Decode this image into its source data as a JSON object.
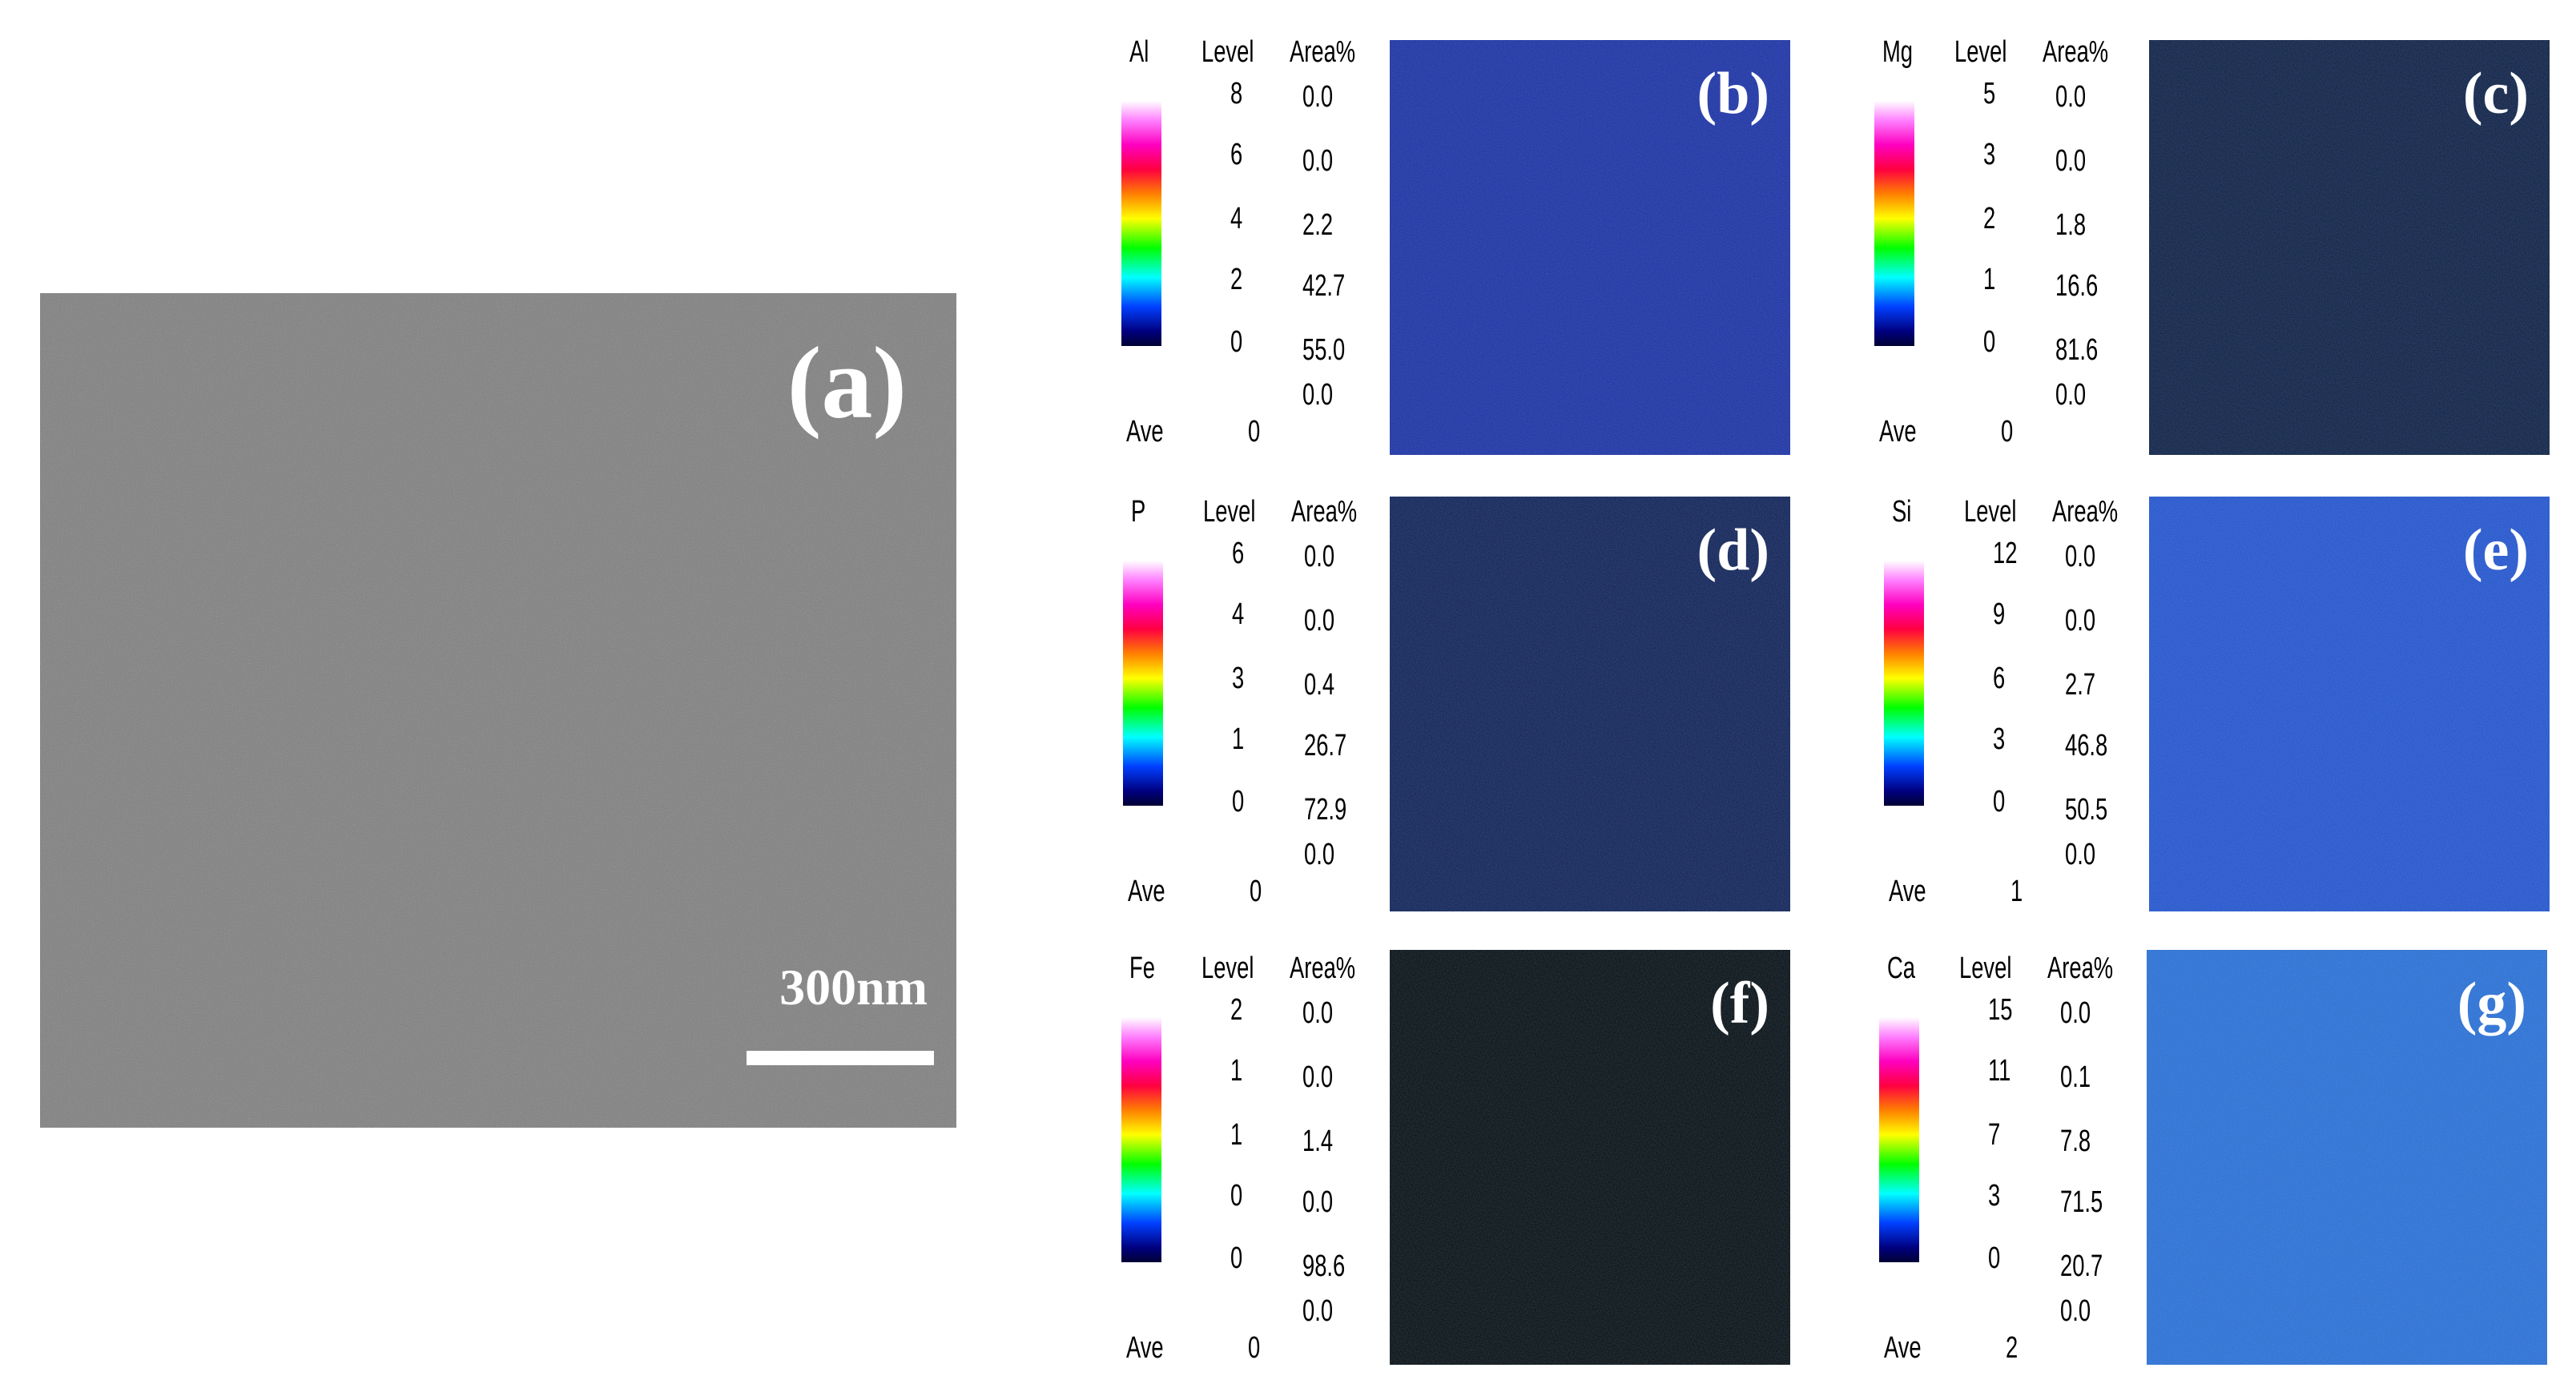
{
  "sem": {
    "label": "(a)",
    "scale_bar": "300nm"
  },
  "labels": {
    "level": "Level",
    "area": "Area%",
    "ave": "Ave"
  },
  "panels": [
    {
      "label": "(b)",
      "element": "Al",
      "levels": [
        "8",
        "6",
        "4",
        "2",
        "0"
      ],
      "areas": [
        "0.0",
        "0.0",
        "2.2",
        "42.7",
        "55.0",
        "0.0"
      ],
      "ave": "0",
      "color": "#1c2c9c"
    },
    {
      "label": "(c)",
      "element": "Mg",
      "levels": [
        "5",
        "3",
        "2",
        "1",
        "0"
      ],
      "areas": [
        "0.0",
        "0.0",
        "1.8",
        "16.6",
        "81.6",
        "0.0"
      ],
      "ave": "0",
      "color": "#0e1a3a"
    },
    {
      "label": "(d)",
      "element": "P",
      "levels": [
        "6",
        "4",
        "3",
        "1",
        "0"
      ],
      "areas": [
        "0.0",
        "0.0",
        "0.4",
        "26.7",
        "72.9",
        "0.0"
      ],
      "ave": "0",
      "color": "#101c4c"
    },
    {
      "label": "(e)",
      "element": "Si",
      "levels": [
        "12",
        "9",
        "6",
        "3",
        "0"
      ],
      "areas": [
        "0.0",
        "0.0",
        "2.7",
        "46.8",
        "50.5",
        "0.0"
      ],
      "ave": "1",
      "color": "#2450c8"
    },
    {
      "label": "(f)",
      "element": "Fe",
      "levels": [
        "2",
        "1",
        "1",
        "0",
        "0"
      ],
      "areas": [
        "0.0",
        "0.0",
        "1.4",
        "0.0",
        "98.6",
        "0.0"
      ],
      "ave": "0",
      "color": "#060806"
    },
    {
      "label": "(g)",
      "element": "Ca",
      "levels": [
        "15",
        "11",
        "7",
        "3",
        "0"
      ],
      "areas": [
        "0.0",
        "0.1",
        "7.8",
        "71.5",
        "20.7",
        "0.0"
      ],
      "ave": "2",
      "color": "#2a6cd0"
    }
  ]
}
